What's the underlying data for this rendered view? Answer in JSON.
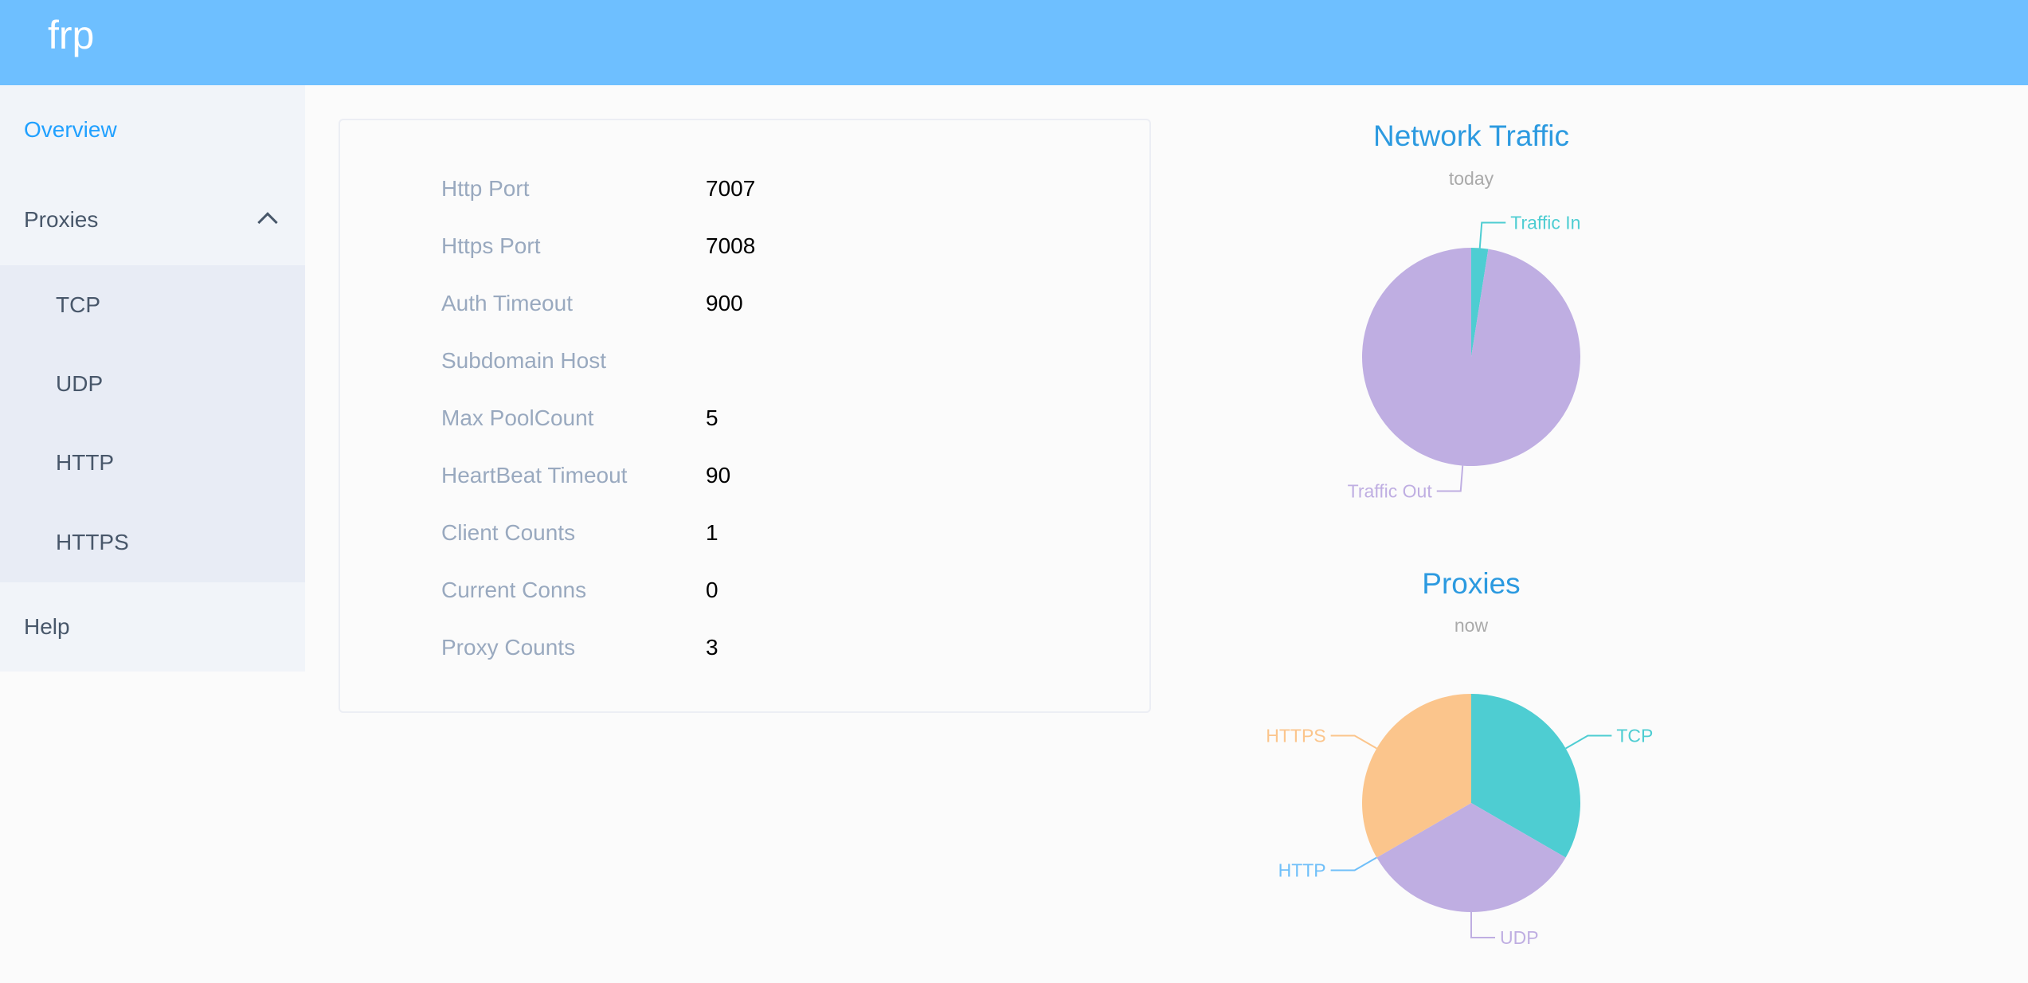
{
  "header": {
    "brand": "frp",
    "color": "#6ebfff"
  },
  "sidebar": {
    "items": [
      {
        "label": "Overview",
        "active": true
      },
      {
        "label": "Proxies",
        "expanded": true,
        "icon": "chevron-up-icon",
        "children": [
          {
            "label": "TCP"
          },
          {
            "label": "UDP"
          },
          {
            "label": "HTTP"
          },
          {
            "label": "HTTPS"
          }
        ]
      },
      {
        "label": "Help"
      }
    ]
  },
  "server_info": [
    {
      "label": "Http Port",
      "value": "7007"
    },
    {
      "label": "Https Port",
      "value": "7008"
    },
    {
      "label": "Auth Timeout",
      "value": "900"
    },
    {
      "label": "Subdomain Host",
      "value": ""
    },
    {
      "label": "Max PoolCount",
      "value": "5"
    },
    {
      "label": "HeartBeat Timeout",
      "value": "90"
    },
    {
      "label": "Client Counts",
      "value": "1"
    },
    {
      "label": "Current Conns",
      "value": "0"
    },
    {
      "label": "Proxy Counts",
      "value": "3"
    }
  ],
  "chart_data": [
    {
      "type": "pie",
      "title": "Network Traffic",
      "subtitle": "today",
      "slices": [
        {
          "name": "Traffic In",
          "value": 2.5,
          "color": "#4ecdd2"
        },
        {
          "name": "Traffic Out",
          "value": 97.5,
          "color": "#bfaee2"
        }
      ]
    },
    {
      "type": "pie",
      "title": "Proxies",
      "subtitle": "now",
      "slices": [
        {
          "name": "TCP",
          "value": 1,
          "color": "#4ecdd2"
        },
        {
          "name": "UDP",
          "value": 1,
          "color": "#bfaee2"
        },
        {
          "name": "HTTP",
          "value": 0,
          "color": "#6fbff9"
        },
        {
          "name": "HTTPS",
          "value": 1,
          "color": "#fbc58c"
        }
      ]
    }
  ]
}
